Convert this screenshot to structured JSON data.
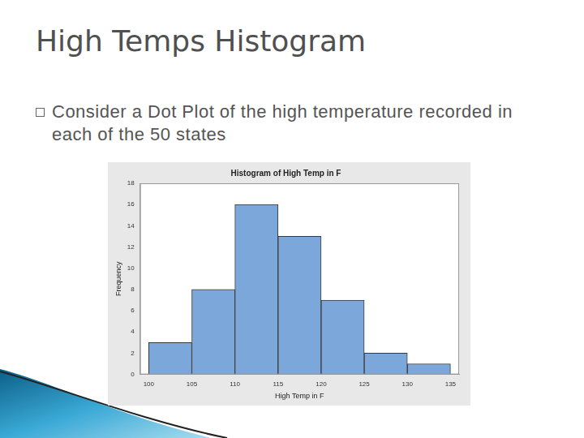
{
  "slide": {
    "title": "High Temps Histogram",
    "bullets": [
      "Consider a Dot Plot of the high temperature recorded in each of the 50 states"
    ]
  },
  "chart_data": {
    "type": "histogram",
    "title": "Histogram of High Temp in F",
    "x_label": "High Temp in F",
    "y_label": "Frequency",
    "bins": [
      100,
      105,
      110,
      115,
      120,
      125,
      130,
      135
    ],
    "values": [
      3,
      8,
      16,
      13,
      7,
      2,
      1
    ],
    "color": "#7ba7da",
    "xlim": [
      99,
      136
    ],
    "xticks": [
      100,
      105,
      110,
      115,
      120,
      125,
      130,
      135
    ],
    "ylim": [
      0,
      18
    ],
    "yticks": [
      0,
      2,
      4,
      6,
      8,
      10,
      12,
      14,
      16,
      18
    ],
    "grid": false
  }
}
